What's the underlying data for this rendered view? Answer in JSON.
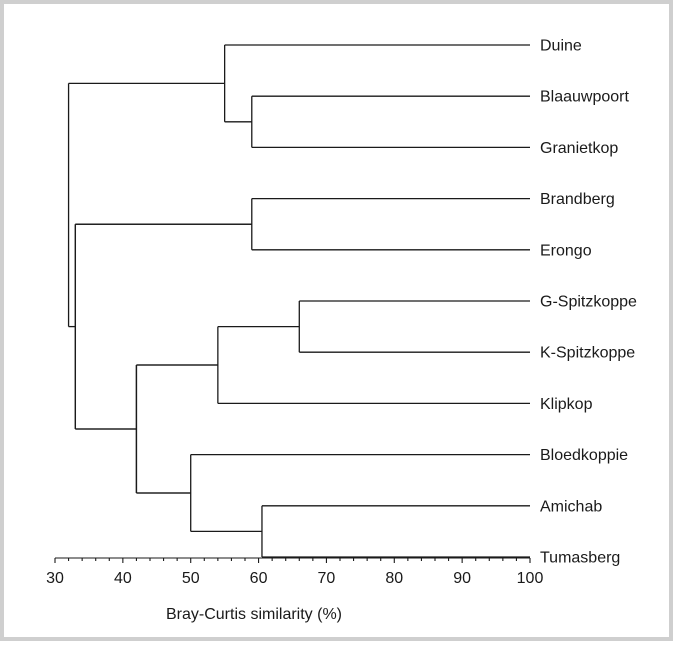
{
  "chart_data": {
    "type": "dendrogram",
    "xlabel": "Bray-Curtis similarity (%)",
    "xlim": [
      30,
      100
    ],
    "x_ticks": [
      30,
      40,
      50,
      60,
      70,
      80,
      90,
      100
    ],
    "grid": false,
    "leaves": [
      "Duine",
      "Blaauwpoort",
      "Granietkop",
      "Brandberg",
      "Erongo",
      "G-Spitzkoppe",
      "K-Spitzkoppe",
      "Klipkop",
      "Bloedkoppie",
      "Amichab",
      "Tumasberg"
    ],
    "merges": [
      {
        "children": [
          "Blaauwpoort",
          "Granietkop"
        ],
        "similarity": 59
      },
      {
        "children": [
          "Duine",
          "Blaauwpoort+Granietkop"
        ],
        "similarity": 55
      },
      {
        "children": [
          "Brandberg",
          "Erongo"
        ],
        "similarity": 59
      },
      {
        "children": [
          "G-Spitzkoppe",
          "K-Spitzkoppe"
        ],
        "similarity": 66
      },
      {
        "children": [
          "G-Spitzkoppe+K-Spitzkoppe",
          "Klipkop"
        ],
        "similarity": 54
      },
      {
        "children": [
          "Amichab",
          "Tumasberg"
        ],
        "similarity": 60.5
      },
      {
        "children": [
          "Bloedkoppie",
          "Amichab+Tumasberg"
        ],
        "similarity": 50
      },
      {
        "children": [
          "G-Spitzkoppe+K-Spitzkoppe+Klipkop",
          "Bloedkoppie+Amichab+Tumasberg"
        ],
        "similarity": 42
      },
      {
        "children": [
          "Brandberg+Erongo",
          "G-Spitzkoppe..Tumasberg"
        ],
        "similarity": 33
      },
      {
        "children": [
          "Duine+Blaauwpoort+Granietkop",
          "Brandberg..Tumasberg"
        ],
        "similarity": 32
      }
    ]
  }
}
